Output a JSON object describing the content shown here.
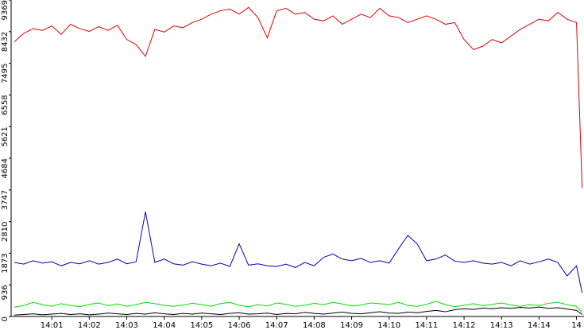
{
  "chart_data": {
    "type": "line",
    "x": [
      0,
      0.25,
      0.5,
      0.75,
      1,
      1.25,
      1.5,
      1.75,
      2,
      2.25,
      2.5,
      2.75,
      3,
      3.25,
      3.5,
      3.75,
      4,
      4.25,
      4.5,
      4.75,
      5,
      5.25,
      5.5,
      5.75,
      6,
      6.25,
      6.5,
      6.75,
      7,
      7.25,
      7.5,
      7.75,
      8,
      8.25,
      8.5,
      8.75,
      9,
      9.25,
      9.5,
      9.75,
      10,
      10.25,
      10.5,
      10.75,
      11,
      11.25,
      11.5,
      11.75,
      12,
      12.25,
      12.5,
      12.75,
      13,
      13.25,
      13.5,
      13.75,
      14,
      14.25,
      14.5,
      14.75,
      15,
      15.15
    ],
    "xlim": [
      0,
      15.2
    ],
    "xticks": [
      {
        "value": 1,
        "label": "14:01"
      },
      {
        "value": 2,
        "label": "14:02"
      },
      {
        "value": 3,
        "label": "14:03"
      },
      {
        "value": 4,
        "label": "14:04"
      },
      {
        "value": 5,
        "label": "14:05"
      },
      {
        "value": 6,
        "label": "14:06"
      },
      {
        "value": 7,
        "label": "14:07"
      },
      {
        "value": 8,
        "label": "14:08"
      },
      {
        "value": 9,
        "label": "14:09"
      },
      {
        "value": 10,
        "label": "14:10"
      },
      {
        "value": 11,
        "label": "14:11"
      },
      {
        "value": 12,
        "label": "14:12"
      },
      {
        "value": 13,
        "label": "14:13"
      },
      {
        "value": 14,
        "label": "14:14"
      },
      {
        "value": 15,
        "label": "14"
      }
    ],
    "ylim": [
      0,
      9369
    ],
    "yticks": [
      0,
      936,
      1873,
      2810,
      3747,
      4684,
      5621,
      6558,
      7495,
      8432,
      9369
    ],
    "series": [
      {
        "color": "#e00000",
        "values": [
          8130,
          8380,
          8520,
          8470,
          8600,
          8350,
          8650,
          8520,
          8440,
          8580,
          8470,
          8620,
          8200,
          8050,
          7700,
          8500,
          8420,
          8600,
          8550,
          8700,
          8800,
          8950,
          9050,
          9100,
          8950,
          9150,
          8850,
          8250,
          9050,
          9120,
          8950,
          9000,
          8800,
          8750,
          8900,
          8650,
          8800,
          8950,
          8850,
          9120,
          8900,
          8850,
          8700,
          8800,
          8900,
          8800,
          8650,
          8700,
          8200,
          7900,
          8000,
          8200,
          8100,
          8300,
          8500,
          8650,
          8800,
          8750,
          9000,
          8800,
          8700,
          3800
        ]
      },
      {
        "color": "#0000c0",
        "values": [
          1600,
          1550,
          1650,
          1580,
          1620,
          1500,
          1600,
          1560,
          1650,
          1550,
          1600,
          1700,
          1560,
          1620,
          3100,
          1600,
          1700,
          1560,
          1520,
          1620,
          1550,
          1500,
          1580,
          1480,
          2150,
          1520,
          1560,
          1500,
          1480,
          1550,
          1450,
          1600,
          1500,
          1750,
          1850,
          1700,
          1650,
          1720,
          1600,
          1650,
          1580,
          2000,
          2400,
          2150,
          1650,
          1700,
          1820,
          1640,
          1600,
          1650,
          1580,
          1550,
          1600,
          1500,
          1650,
          1550,
          1620,
          1700,
          1600,
          1200,
          1500,
          700
        ]
      },
      {
        "color": "#00dd00",
        "values": [
          280,
          320,
          420,
          350,
          300,
          380,
          330,
          290,
          360,
          400,
          320,
          370,
          300,
          350,
          420,
          380,
          330,
          300,
          340,
          390,
          350,
          300,
          380,
          420,
          330,
          290,
          350,
          310,
          400,
          360,
          300,
          330,
          390,
          350,
          420,
          370,
          310,
          340,
          400,
          380,
          350,
          420,
          330,
          300,
          360,
          450,
          350,
          290,
          330,
          380,
          320,
          360,
          400,
          340,
          300,
          350,
          320,
          390,
          420,
          350,
          300,
          120
        ]
      },
      {
        "color": "#000000",
        "values": [
          40,
          60,
          80,
          50,
          70,
          90,
          60,
          80,
          50,
          70,
          100,
          80,
          60,
          90,
          70,
          110,
          80,
          60,
          90,
          70,
          100,
          80,
          60,
          90,
          110,
          70,
          80,
          100,
          60,
          90,
          80,
          120,
          90,
          70,
          100,
          130,
          90,
          80,
          110,
          140,
          100,
          90,
          130,
          110,
          150,
          180,
          140,
          200,
          230,
          210,
          250,
          230,
          260,
          240,
          270,
          250,
          280,
          240,
          260,
          220,
          180,
          60
        ]
      }
    ]
  }
}
